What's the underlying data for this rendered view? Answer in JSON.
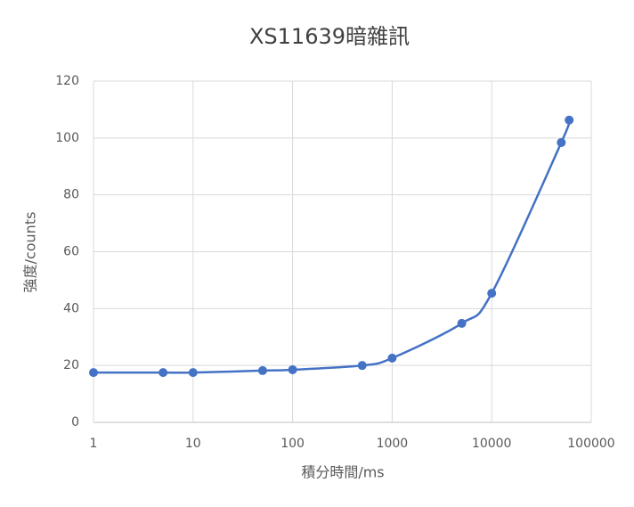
{
  "chart_data": {
    "type": "line",
    "title": "XS11639暗雜訊",
    "x_label": "積分時間/ms",
    "y_label": "強度/counts",
    "x": [
      1,
      5,
      10,
      50,
      100,
      500,
      1000,
      5000,
      10000,
      50000,
      60000
    ],
    "series": [
      {
        "name": "XS11639",
        "color": "#4472c4",
        "values": [
          17.5,
          17.5,
          17.5,
          18.2,
          18.5,
          20.0,
          22.6,
          34.8,
          45.4,
          98.4,
          106.3
        ]
      }
    ],
    "xscale": "log",
    "xlim": [
      1,
      100000
    ],
    "xticks": [
      1,
      10,
      100,
      1000,
      10000,
      100000
    ],
    "ylim": [
      0,
      120
    ],
    "yticks": [
      0,
      20,
      40,
      60,
      80,
      100,
      120
    ],
    "grid": true,
    "smooth": true
  }
}
